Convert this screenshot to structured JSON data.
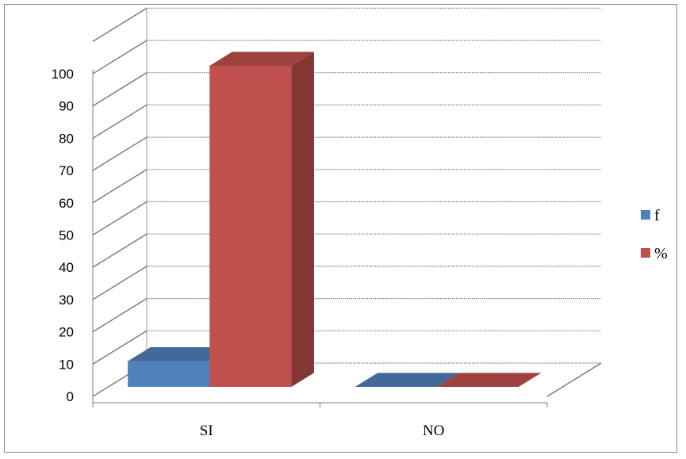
{
  "chart_data": {
    "type": "bar",
    "style": "3d-clustered-column",
    "categories": [
      "SI",
      "NO"
    ],
    "series": [
      {
        "name": "f",
        "values": [
          8,
          0
        ],
        "color": "#4f81bd"
      },
      {
        "name": "%",
        "values": [
          100,
          0
        ],
        "color": "#c0504d"
      }
    ],
    "title": "",
    "xlabel": "",
    "ylabel": "",
    "ylim": [
      0,
      100
    ],
    "yticks": [
      0,
      10,
      20,
      30,
      40,
      50,
      60,
      70,
      80,
      90,
      100
    ],
    "grid": true,
    "legend": "right"
  }
}
